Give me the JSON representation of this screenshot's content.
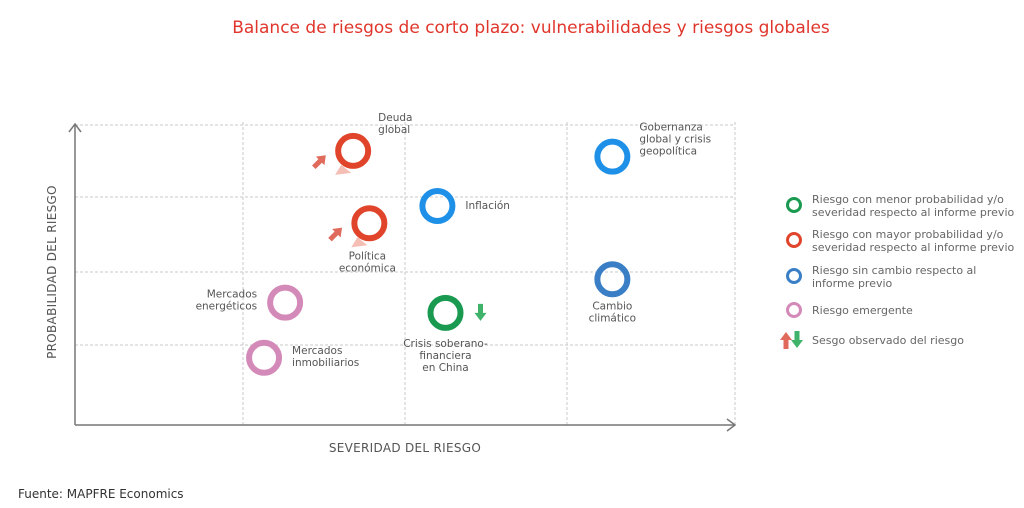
{
  "chart_data": {
    "type": "scatter",
    "title": "Balance de riesgos de corto plazo: vulnerabilidades y riesgos globales",
    "xlabel": "SEVERIDAD DEL RIESGO",
    "ylabel": "PROBABILIDAD DEL RIESGO",
    "xlim": [
      0,
      4
    ],
    "ylim": [
      0,
      4
    ],
    "grid": true,
    "legend_position": "right",
    "colors": {
      "menor": "#1a9a50",
      "mayor": "#e0452c",
      "sin_cambio": "#1e90e8",
      "sin_cambio_dark": "#3a7fc6",
      "emergente": "#d48ab8",
      "up_arrow": "#e06a5c",
      "down_arrow": "#3fb36a"
    },
    "points": [
      {
        "name": [
          "Deuda",
          "global"
        ],
        "x": 1.68,
        "y": 3.64,
        "status": "mayor",
        "bias": "up"
      },
      {
        "name": [
          "Política",
          "económica"
        ],
        "x": 1.78,
        "y": 2.65,
        "status": "mayor",
        "bias": "up"
      },
      {
        "name": [
          "Inflación"
        ],
        "x": 2.2,
        "y": 2.88,
        "status": "sin_cambio",
        "bias": ""
      },
      {
        "name": [
          "Gobernanza",
          "global y crisis",
          "geopolítica"
        ],
        "x": 3.27,
        "y": 3.56,
        "status": "sin_cambio",
        "bias": ""
      },
      {
        "name": [
          "Cambio",
          "climático"
        ],
        "x": 3.27,
        "y": 1.9,
        "status": "sin_cambio_dark",
        "bias": ""
      },
      {
        "name": [
          "Crisis soberano-",
          "financiera",
          "en China"
        ],
        "x": 2.25,
        "y": 1.44,
        "status": "menor",
        "bias": "down"
      },
      {
        "name": [
          "Mercados",
          "energéticos"
        ],
        "x": 1.26,
        "y": 1.58,
        "status": "emergente",
        "bias": ""
      },
      {
        "name": [
          "Mercados",
          "inmobiliarios"
        ],
        "x": 1.13,
        "y": 0.84,
        "status": "emergente",
        "bias": ""
      }
    ],
    "legend": [
      {
        "status": "menor",
        "text": [
          "Riesgo con menor probabilidad y/o",
          "severidad respecto al informe previo"
        ]
      },
      {
        "status": "mayor",
        "text": [
          "Riesgo con mayor probabilidad y/o",
          "severidad respecto al informe previo"
        ]
      },
      {
        "status": "sin_cambio_dark",
        "text": [
          "Riesgo sin cambio respecto al",
          "informe previo"
        ]
      },
      {
        "status": "emergente",
        "text": [
          "Riesgo emergente"
        ]
      },
      {
        "status": "bias",
        "text": [
          "Sesgo observado del riesgo"
        ]
      }
    ]
  },
  "source": "Fuente: MAPFRE Economics"
}
